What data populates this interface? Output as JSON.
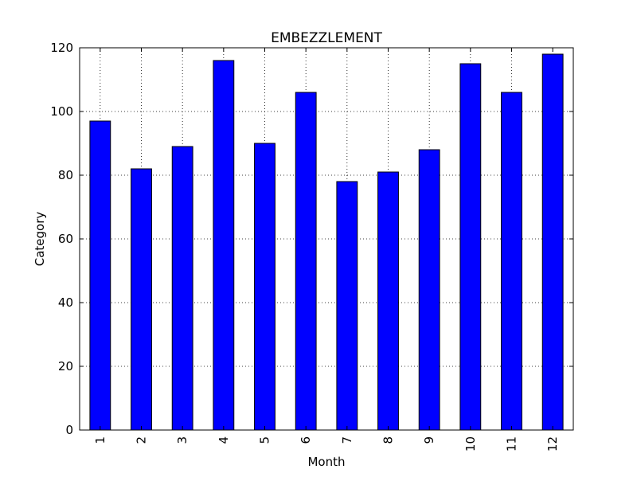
{
  "chart_data": {
    "type": "bar",
    "title": "EMBEZZLEMENT",
    "xlabel": "Month",
    "ylabel": "Category",
    "categories": [
      "1",
      "2",
      "3",
      "4",
      "5",
      "6",
      "7",
      "8",
      "9",
      "10",
      "11",
      "12"
    ],
    "values": [
      97,
      82,
      89,
      116,
      90,
      106,
      78,
      81,
      88,
      115,
      106,
      118
    ],
    "ylim": [
      0,
      120
    ],
    "yticks": [
      "0",
      "20",
      "40",
      "60",
      "80",
      "100",
      "120"
    ],
    "grid": true,
    "legend": "none",
    "colors": {
      "bar": "#0000ff",
      "bar_edge": "#000000",
      "grid": "#000000"
    }
  }
}
